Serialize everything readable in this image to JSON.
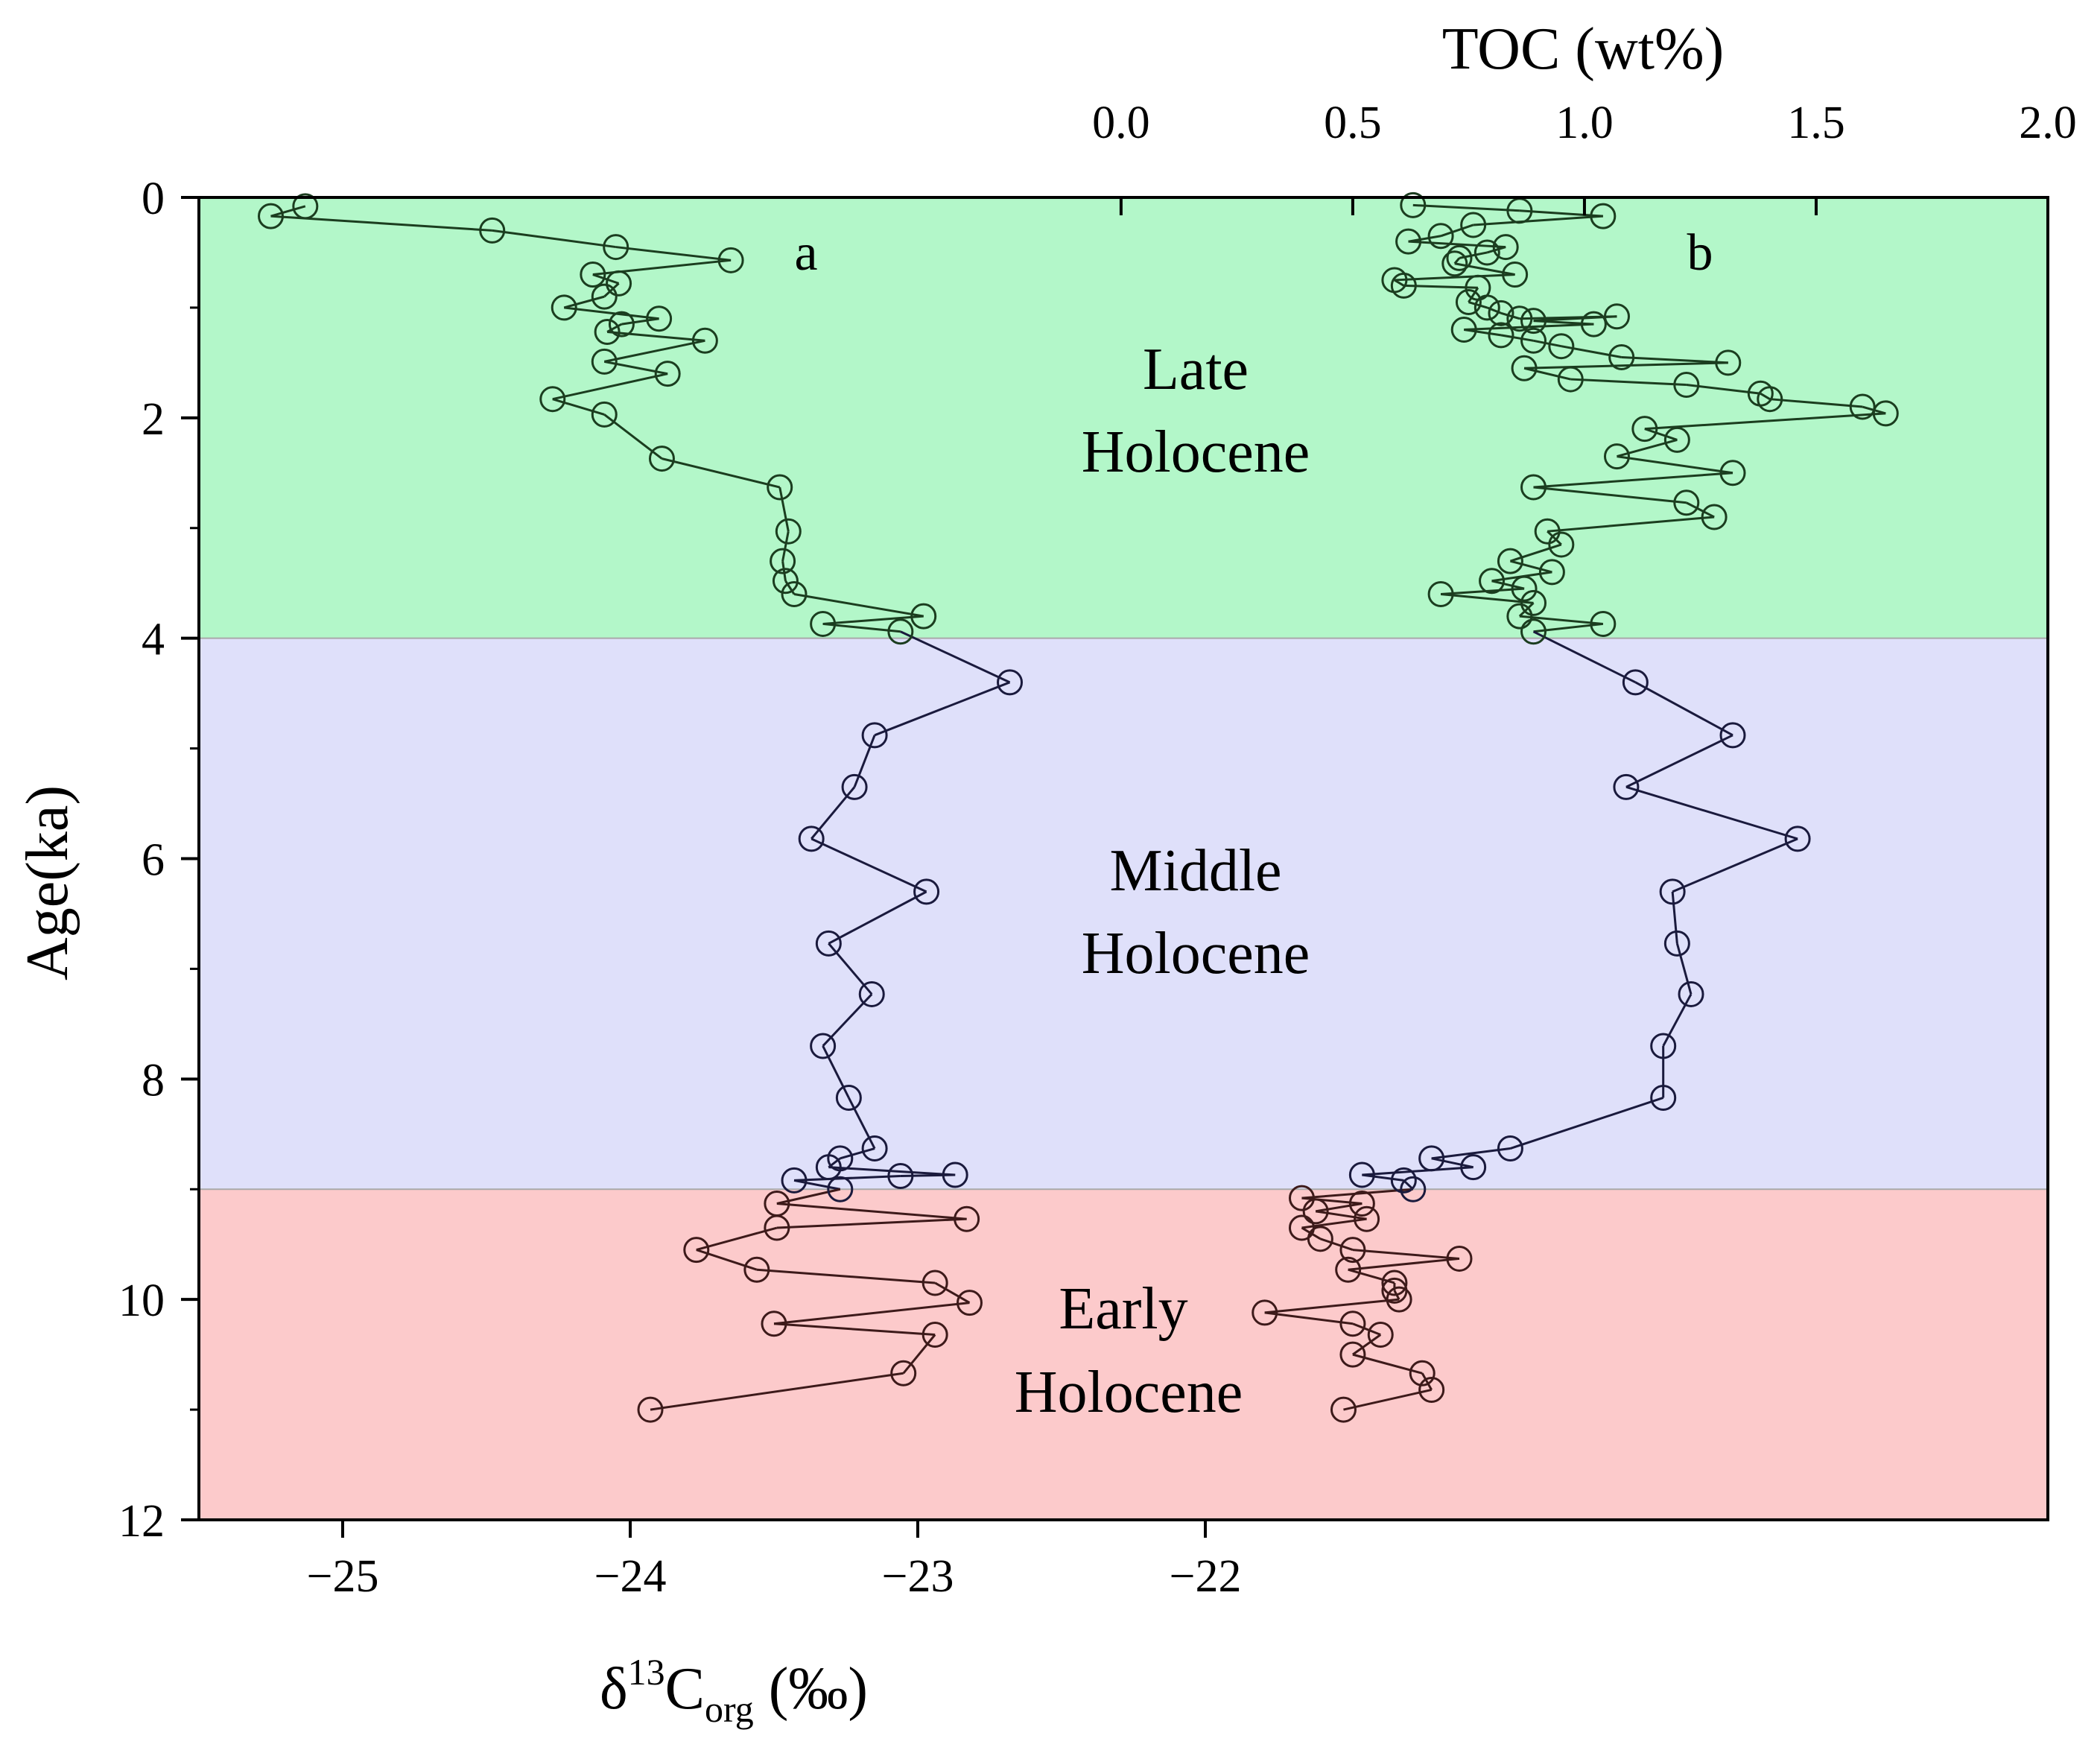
{
  "chart_data": {
    "type": "line",
    "title": "",
    "y_axis": {
      "label": "Age(ka)",
      "range": [
        0,
        12
      ],
      "reversed": true,
      "ticks": [
        "0",
        "2",
        "4",
        "6",
        "8",
        "10",
        "12"
      ],
      "tick_values": [
        0,
        2,
        4,
        6,
        8,
        10,
        12
      ]
    },
    "x_axis_bottom": {
      "label_main": "δ",
      "label_sup": "13",
      "label_c": "C",
      "label_sub": "org",
      "label_unit": " (‰)",
      "range": [
        -25.5,
        -19.07
      ],
      "ticks": [
        "−25",
        "−24",
        "−23",
        "−22"
      ],
      "tick_values": [
        -25,
        -24,
        -23,
        -22
      ]
    },
    "x_axis_top": {
      "label": "TOC (wt%)",
      "range": [
        -1.99,
        2.0
      ],
      "ticks": [
        "0.0",
        "0.5",
        "1.0",
        "1.5",
        "2.0"
      ],
      "tick_values": [
        0,
        0.5,
        1.0,
        1.5,
        2.0
      ]
    },
    "bands": [
      {
        "name": "late",
        "line1": "Late",
        "line2": "Holocene",
        "from": 0,
        "to": 4,
        "fill": "#b3f7c9",
        "line_color": "#1b3d1f"
      },
      {
        "name": "middle",
        "line1": "Middle",
        "line2": "Holocene",
        "from": 4,
        "to": 9,
        "fill": "#dfe0fa",
        "line_color": "#1a1a3d"
      },
      {
        "name": "early",
        "line1": "Early",
        "line2": "Holocene",
        "from": 9,
        "to": 12,
        "fill": "#fccacb",
        "line_color": "#3d1a1a"
      }
    ],
    "panel_labels": {
      "a": "a",
      "b": "b"
    },
    "series": [
      {
        "name": "δ13Corg",
        "axis": "bottom",
        "points": [
          [
            -25.13,
            0.08
          ],
          [
            -25.25,
            0.17
          ],
          [
            -24.48,
            0.3
          ],
          [
            -24.05,
            0.45
          ],
          [
            -23.65,
            0.57
          ],
          [
            -24.13,
            0.7
          ],
          [
            -24.04,
            0.78
          ],
          [
            -24.09,
            0.9
          ],
          [
            -24.23,
            1.0
          ],
          [
            -23.9,
            1.1
          ],
          [
            -24.03,
            1.15
          ],
          [
            -24.08,
            1.22
          ],
          [
            -23.74,
            1.3
          ],
          [
            -24.09,
            1.49
          ],
          [
            -23.87,
            1.6
          ],
          [
            -24.27,
            1.83
          ],
          [
            -24.09,
            1.97
          ],
          [
            -23.89,
            2.37
          ],
          [
            -23.48,
            2.63
          ],
          [
            -23.45,
            3.03
          ],
          [
            -23.47,
            3.3
          ],
          [
            -23.46,
            3.48
          ],
          [
            -23.43,
            3.6
          ],
          [
            -22.98,
            3.8
          ],
          [
            -23.33,
            3.87
          ],
          [
            -23.06,
            3.94
          ],
          [
            -22.68,
            4.4
          ],
          [
            -23.15,
            4.88
          ],
          [
            -23.22,
            5.35
          ],
          [
            -23.37,
            5.82
          ],
          [
            -22.97,
            6.3
          ],
          [
            -23.31,
            6.77
          ],
          [
            -23.16,
            7.23
          ],
          [
            -23.33,
            7.7
          ],
          [
            -23.24,
            8.17
          ],
          [
            -23.15,
            8.63
          ],
          [
            -23.27,
            8.72
          ],
          [
            -23.31,
            8.8
          ],
          [
            -22.87,
            8.87
          ],
          [
            -23.06,
            8.88
          ],
          [
            -23.43,
            8.92
          ],
          [
            -23.27,
            9.0
          ],
          [
            -23.49,
            9.13
          ],
          [
            -22.83,
            9.27
          ],
          [
            -23.49,
            9.35
          ],
          [
            -23.77,
            9.55
          ],
          [
            -23.56,
            9.73
          ],
          [
            -22.94,
            9.85
          ],
          [
            -22.82,
            10.03
          ],
          [
            -23.5,
            10.22
          ],
          [
            -22.94,
            10.32
          ],
          [
            -23.05,
            10.67
          ],
          [
            -23.93,
            11.0
          ]
        ]
      },
      {
        "name": "TOC",
        "axis": "top",
        "points": [
          [
            0.63,
            0.07
          ],
          [
            0.86,
            0.12
          ],
          [
            1.04,
            0.17
          ],
          [
            0.76,
            0.25
          ],
          [
            0.69,
            0.35
          ],
          [
            0.62,
            0.4
          ],
          [
            0.83,
            0.45
          ],
          [
            0.79,
            0.5
          ],
          [
            0.73,
            0.55
          ],
          [
            0.72,
            0.6
          ],
          [
            0.85,
            0.7
          ],
          [
            0.59,
            0.75
          ],
          [
            0.61,
            0.8
          ],
          [
            0.77,
            0.82
          ],
          [
            0.75,
            0.95
          ],
          [
            0.79,
            1.0
          ],
          [
            0.82,
            1.05
          ],
          [
            0.86,
            1.1
          ],
          [
            1.07,
            1.08
          ],
          [
            0.89,
            1.12
          ],
          [
            1.02,
            1.15
          ],
          [
            0.74,
            1.2
          ],
          [
            0.82,
            1.25
          ],
          [
            0.89,
            1.3
          ],
          [
            0.95,
            1.35
          ],
          [
            1.08,
            1.45
          ],
          [
            1.31,
            1.5
          ],
          [
            0.87,
            1.55
          ],
          [
            0.97,
            1.65
          ],
          [
            1.22,
            1.7
          ],
          [
            1.38,
            1.78
          ],
          [
            1.4,
            1.83
          ],
          [
            1.6,
            1.9
          ],
          [
            1.65,
            1.96
          ],
          [
            1.13,
            2.1
          ],
          [
            1.2,
            2.2
          ],
          [
            1.07,
            2.35
          ],
          [
            1.32,
            2.5
          ],
          [
            0.89,
            2.63
          ],
          [
            1.22,
            2.77
          ],
          [
            1.28,
            2.9
          ],
          [
            0.92,
            3.03
          ],
          [
            0.95,
            3.15
          ],
          [
            0.84,
            3.3
          ],
          [
            0.93,
            3.4
          ],
          [
            0.8,
            3.48
          ],
          [
            0.87,
            3.55
          ],
          [
            0.69,
            3.6
          ],
          [
            0.89,
            3.68
          ],
          [
            0.86,
            3.8
          ],
          [
            1.04,
            3.87
          ],
          [
            0.89,
            3.94
          ],
          [
            1.11,
            4.4
          ],
          [
            1.32,
            4.88
          ],
          [
            1.09,
            5.35
          ],
          [
            1.46,
            5.82
          ],
          [
            1.19,
            6.3
          ],
          [
            1.2,
            6.77
          ],
          [
            1.23,
            7.23
          ],
          [
            1.17,
            7.7
          ],
          [
            1.17,
            8.17
          ],
          [
            0.84,
            8.63
          ],
          [
            0.67,
            8.72
          ],
          [
            0.76,
            8.8
          ],
          [
            0.52,
            8.87
          ],
          [
            0.61,
            8.92
          ],
          [
            0.63,
            9.0
          ],
          [
            0.39,
            9.08
          ],
          [
            0.52,
            9.13
          ],
          [
            0.42,
            9.2
          ],
          [
            0.53,
            9.27
          ],
          [
            0.39,
            9.35
          ],
          [
            0.43,
            9.45
          ],
          [
            0.5,
            9.55
          ],
          [
            0.73,
            9.63
          ],
          [
            0.49,
            9.73
          ],
          [
            0.59,
            9.85
          ],
          [
            0.59,
            9.92
          ],
          [
            0.6,
            10.0
          ],
          [
            0.31,
            10.12
          ],
          [
            0.5,
            10.22
          ],
          [
            0.56,
            10.32
          ],
          [
            0.5,
            10.5
          ],
          [
            0.65,
            10.67
          ],
          [
            0.67,
            10.82
          ],
          [
            0.48,
            11.0
          ]
        ]
      }
    ]
  }
}
